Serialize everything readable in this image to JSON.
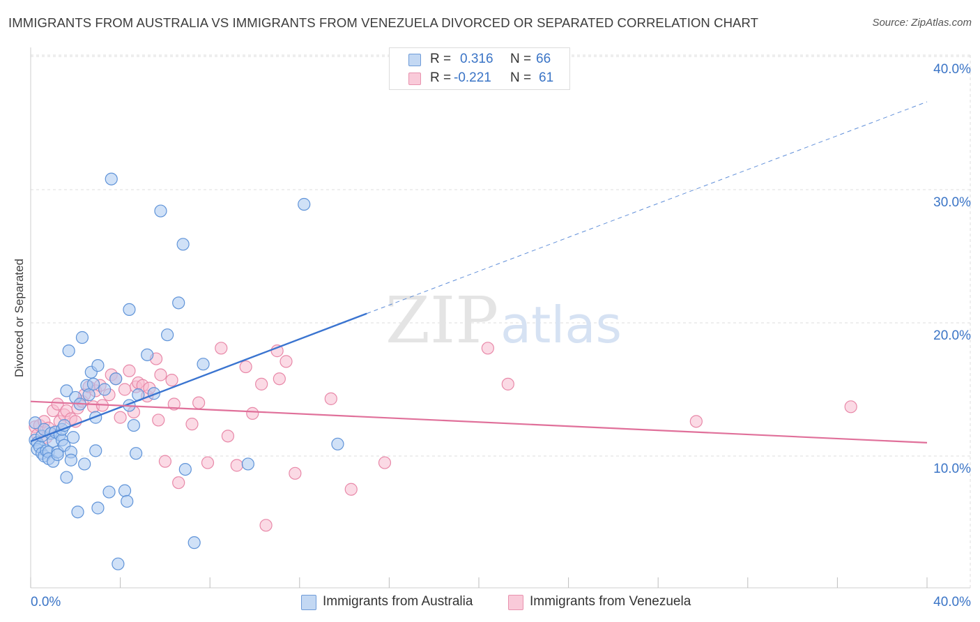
{
  "title": "IMMIGRANTS FROM AUSTRALIA VS IMMIGRANTS FROM VENEZUELA DIVORCED OR SEPARATED CORRELATION CHART",
  "source": "Source: ZipAtlas.com",
  "watermark": {
    "zip": "ZIP",
    "atlas": "atlas"
  },
  "colors": {
    "australia_fill": "#a9c8f0",
    "australia_stroke": "#5f93d8",
    "australia_line": "#3a74d0",
    "venezuela_fill": "#f7bcd0",
    "venezuela_stroke": "#e888a8",
    "venezuela_line": "#e0709a",
    "tick_label": "#3a74c6",
    "grid": "#dddddd"
  },
  "stat_legend": [
    {
      "r_label": "R =",
      "r_value": "0.316",
      "n_label": "N =",
      "n_value": "66"
    },
    {
      "r_label": "R =",
      "r_value": "-0.221",
      "n_label": "N =",
      "n_value": "61"
    }
  ],
  "bottom_legend": [
    {
      "label": "Immigrants from Australia"
    },
    {
      "label": "Immigrants from Venezuela"
    }
  ],
  "chart_data": {
    "type": "scatter",
    "title": "IMMIGRANTS FROM AUSTRALIA VS IMMIGRANTS FROM VENEZUELA DIVORCED OR SEPARATED CORRELATION CHART",
    "xlabel": "",
    "ylabel": "Divorced or Separated",
    "xlim": [
      0,
      40
    ],
    "ylim": [
      0,
      40
    ],
    "x_tick_labels": [
      "0.0%",
      "40.0%"
    ],
    "y_ticks": [
      10,
      20,
      30,
      40
    ],
    "y_tick_labels": [
      "10.0%",
      "20.0%",
      "30.0%",
      "40.0%"
    ],
    "grid": true,
    "legend_position": "top-center",
    "series": [
      {
        "name": "Immigrants from Australia",
        "r": 0.316,
        "n": 66,
        "trend": {
          "x0": 0.0,
          "y0": 11.1,
          "x1": 15.0,
          "y1": 20.7,
          "dashed_to_x": 40.0,
          "dashed_to_y": 36.6
        },
        "points": [
          [
            0.2,
            12.5
          ],
          [
            0.2,
            11.2
          ],
          [
            0.3,
            11.0
          ],
          [
            0.3,
            10.5
          ],
          [
            0.4,
            10.7
          ],
          [
            0.5,
            10.2
          ],
          [
            0.5,
            11.5
          ],
          [
            0.6,
            10.0
          ],
          [
            0.6,
            12.0
          ],
          [
            0.7,
            10.4
          ],
          [
            0.8,
            10.3
          ],
          [
            0.8,
            9.8
          ],
          [
            0.9,
            11.7
          ],
          [
            1.0,
            11.1
          ],
          [
            1.0,
            9.6
          ],
          [
            1.1,
            11.8
          ],
          [
            1.2,
            10.3
          ],
          [
            1.3,
            11.6
          ],
          [
            1.4,
            11.2
          ],
          [
            1.4,
            12.0
          ],
          [
            1.5,
            10.8
          ],
          [
            1.5,
            12.3
          ],
          [
            1.6,
            14.9
          ],
          [
            1.6,
            8.4
          ],
          [
            1.7,
            17.9
          ],
          [
            1.8,
            10.3
          ],
          [
            1.8,
            9.7
          ],
          [
            1.9,
            11.4
          ],
          [
            2.0,
            14.4
          ],
          [
            2.1,
            5.8
          ],
          [
            2.2,
            13.9
          ],
          [
            2.3,
            18.9
          ],
          [
            2.4,
            9.4
          ],
          [
            2.5,
            15.3
          ],
          [
            2.6,
            14.6
          ],
          [
            2.7,
            16.3
          ],
          [
            2.8,
            15.4
          ],
          [
            2.9,
            10.4
          ],
          [
            3.0,
            6.1
          ],
          [
            3.0,
            16.8
          ],
          [
            3.3,
            15.0
          ],
          [
            3.5,
            7.3
          ],
          [
            3.6,
            30.8
          ],
          [
            3.8,
            15.8
          ],
          [
            3.9,
            1.9
          ],
          [
            4.2,
            7.4
          ],
          [
            4.3,
            6.6
          ],
          [
            4.4,
            13.8
          ],
          [
            4.4,
            21.0
          ],
          [
            4.6,
            12.3
          ],
          [
            4.7,
            10.2
          ],
          [
            4.8,
            14.6
          ],
          [
            5.2,
            17.6
          ],
          [
            5.5,
            14.7
          ],
          [
            5.8,
            28.4
          ],
          [
            6.1,
            19.1
          ],
          [
            6.6,
            21.5
          ],
          [
            6.8,
            25.9
          ],
          [
            6.9,
            9.0
          ],
          [
            7.3,
            3.5
          ],
          [
            7.7,
            16.9
          ],
          [
            9.7,
            9.4
          ],
          [
            12.2,
            28.9
          ],
          [
            13.7,
            10.9
          ],
          [
            2.9,
            12.9
          ],
          [
            1.2,
            10.1
          ]
        ]
      },
      {
        "name": "Immigrants from Venezuela",
        "r": -0.221,
        "n": 61,
        "trend": {
          "x0": 0.0,
          "y0": 14.1,
          "x1": 40.0,
          "y1": 11.0
        },
        "points": [
          [
            0.2,
            12.2
          ],
          [
            0.3,
            11.6
          ],
          [
            0.4,
            12.3
          ],
          [
            0.6,
            12.6
          ],
          [
            0.7,
            11.4
          ],
          [
            0.8,
            12.1
          ],
          [
            1.0,
            13.4
          ],
          [
            1.2,
            13.9
          ],
          [
            1.3,
            12.6
          ],
          [
            1.5,
            13.1
          ],
          [
            1.6,
            13.4
          ],
          [
            1.8,
            12.8
          ],
          [
            2.0,
            12.6
          ],
          [
            2.1,
            13.6
          ],
          [
            2.3,
            14.1
          ],
          [
            2.4,
            14.6
          ],
          [
            2.6,
            15.2
          ],
          [
            2.8,
            13.7
          ],
          [
            2.9,
            14.9
          ],
          [
            3.1,
            15.3
          ],
          [
            3.2,
            13.8
          ],
          [
            3.5,
            14.6
          ],
          [
            3.6,
            16.1
          ],
          [
            3.8,
            15.8
          ],
          [
            4.0,
            12.9
          ],
          [
            4.2,
            15.0
          ],
          [
            4.4,
            16.4
          ],
          [
            4.6,
            13.3
          ],
          [
            4.7,
            15.2
          ],
          [
            4.8,
            15.5
          ],
          [
            5.0,
            15.3
          ],
          [
            5.2,
            14.5
          ],
          [
            5.3,
            15.1
          ],
          [
            5.6,
            17.3
          ],
          [
            5.7,
            12.7
          ],
          [
            5.8,
            16.1
          ],
          [
            6.0,
            9.6
          ],
          [
            6.3,
            15.7
          ],
          [
            6.4,
            13.9
          ],
          [
            6.6,
            8.0
          ],
          [
            7.2,
            12.4
          ],
          [
            7.5,
            14.0
          ],
          [
            7.9,
            9.5
          ],
          [
            8.5,
            18.1
          ],
          [
            8.8,
            11.5
          ],
          [
            9.2,
            9.3
          ],
          [
            9.6,
            16.7
          ],
          [
            9.9,
            13.2
          ],
          [
            10.3,
            15.4
          ],
          [
            10.5,
            4.8
          ],
          [
            11.0,
            17.9
          ],
          [
            11.1,
            15.8
          ],
          [
            11.4,
            17.1
          ],
          [
            11.8,
            8.7
          ],
          [
            13.4,
            14.3
          ],
          [
            14.3,
            7.5
          ],
          [
            15.8,
            9.5
          ],
          [
            20.4,
            18.1
          ],
          [
            21.3,
            15.4
          ],
          [
            29.7,
            12.6
          ],
          [
            36.6,
            13.7
          ]
        ]
      }
    ]
  }
}
